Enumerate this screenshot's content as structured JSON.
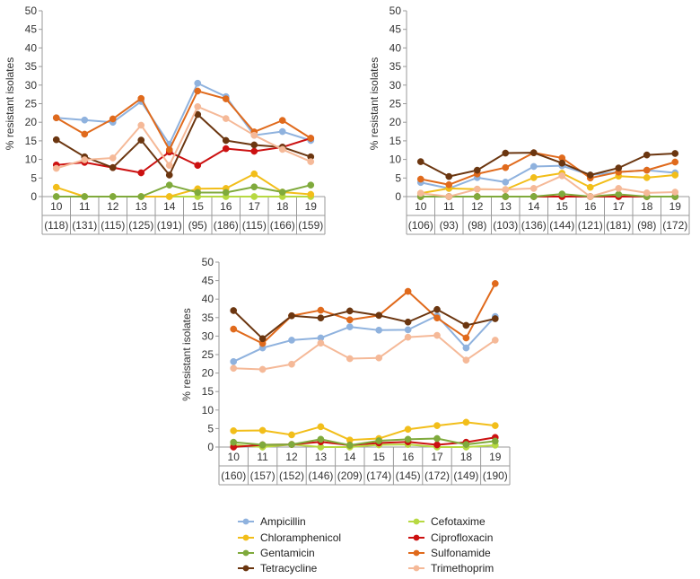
{
  "legend": [
    {
      "name": "Ampicillin",
      "color": "#8FB2DE"
    },
    {
      "name": "Cefotaxime",
      "color": "#B7D942"
    },
    {
      "name": "Chloramphenicol",
      "color": "#F2BE1A"
    },
    {
      "name": "Ciprofloxacin",
      "color": "#CC1111"
    },
    {
      "name": "Gentamicin",
      "color": "#7FAA3C"
    },
    {
      "name": "Sulfonamide",
      "color": "#E06A1C"
    },
    {
      "name": "Tetracycline",
      "color": "#6B3610"
    },
    {
      "name": "Trimethoprim",
      "color": "#F5B998"
    }
  ],
  "chart_data": [
    {
      "type": "line",
      "ylabel": "% resistant isolates",
      "ylim": [
        0,
        50
      ],
      "yticks": [
        "0",
        "5",
        "10",
        "15",
        "20",
        "25",
        "30",
        "35",
        "40",
        "45",
        "50"
      ],
      "categories": [
        "10",
        "11",
        "12",
        "13",
        "14",
        "15",
        "16",
        "17",
        "18",
        "19"
      ],
      "counts": [
        "(118)",
        "(131)",
        "(115)",
        "(125)",
        "(191)",
        "(95)",
        "(186)",
        "(115)",
        "(166)",
        "(159)"
      ],
      "series": [
        {
          "name": "Ampicillin",
          "values": [
            21.2,
            20.6,
            20.0,
            25.6,
            14.1,
            30.5,
            26.9,
            16.5,
            17.5,
            15.1
          ]
        },
        {
          "name": "Cefotaxime",
          "values": [
            0,
            0,
            0,
            0,
            0,
            0,
            0,
            0,
            0,
            0
          ]
        },
        {
          "name": "Chloramphenicol",
          "values": [
            2.5,
            0,
            0,
            0,
            0,
            2.1,
            2.2,
            6.1,
            1.2,
            0.6
          ]
        },
        {
          "name": "Ciprofloxacin",
          "values": [
            8.5,
            9.2,
            7.8,
            6.4,
            12.0,
            8.4,
            12.9,
            12.2,
            13.3,
            15.7
          ]
        },
        {
          "name": "Gentamicin",
          "values": [
            0,
            0,
            0,
            0,
            3.1,
            1.1,
            1.1,
            2.6,
            1.2,
            3.1
          ]
        },
        {
          "name": "Sulfonamide",
          "values": [
            21.2,
            16.8,
            20.9,
            26.4,
            12.6,
            28.4,
            26.3,
            17.4,
            20.5,
            15.7
          ]
        },
        {
          "name": "Tetracycline",
          "values": [
            15.3,
            10.7,
            7.8,
            15.2,
            5.8,
            22.1,
            15.1,
            13.9,
            13.3,
            10.7
          ]
        },
        {
          "name": "Trimethoprim",
          "values": [
            7.6,
            9.9,
            10.4,
            19.2,
            8.4,
            24.2,
            21.0,
            16.5,
            12.7,
            9.4
          ]
        }
      ]
    },
    {
      "type": "line",
      "ylabel": "% resistant isolates",
      "ylim": [
        0,
        50
      ],
      "yticks": [
        "0",
        "5",
        "10",
        "15",
        "20",
        "25",
        "30",
        "35",
        "40",
        "45",
        "50"
      ],
      "categories": [
        "10",
        "11",
        "12",
        "13",
        "14",
        "15",
        "16",
        "17",
        "18",
        "19"
      ],
      "counts": [
        "(106)",
        "(93)",
        "(98)",
        "(103)",
        "(136)",
        "(144)",
        "(121)",
        "(181)",
        "(98)",
        "(172)"
      ],
      "series": [
        {
          "name": "Ampicillin",
          "values": [
            3.8,
            2.2,
            5.1,
            3.9,
            8.1,
            8.3,
            5.8,
            6.6,
            7.1,
            6.4
          ]
        },
        {
          "name": "Cefotaxime",
          "values": [
            0,
            0,
            0,
            0,
            0,
            0,
            0,
            0,
            0,
            0
          ]
        },
        {
          "name": "Chloramphenicol",
          "values": [
            0.9,
            2.2,
            2.0,
            1.9,
            5.1,
            6.3,
            2.5,
            5.5,
            5.1,
            5.8
          ]
        },
        {
          "name": "Ciprofloxacin",
          "values": [
            0,
            0,
            0,
            0,
            0,
            0,
            0,
            0,
            0,
            0
          ]
        },
        {
          "name": "Gentamicin",
          "values": [
            0,
            0,
            0,
            0,
            0,
            0.7,
            0,
            0.6,
            0,
            0
          ]
        },
        {
          "name": "Sulfonamide",
          "values": [
            4.7,
            3.2,
            6.1,
            7.8,
            11.8,
            10.4,
            5.0,
            6.6,
            7.1,
            9.3
          ]
        },
        {
          "name": "Tetracycline",
          "values": [
            9.4,
            5.4,
            7.1,
            11.7,
            11.8,
            9.0,
            5.8,
            7.7,
            11.2,
            11.6
          ]
        },
        {
          "name": "Trimethoprim",
          "values": [
            0.9,
            0,
            2.0,
            1.9,
            2.2,
            5.6,
            0,
            2.2,
            1.0,
            1.2
          ]
        }
      ]
    },
    {
      "type": "line",
      "ylabel": "% resistant isolates",
      "ylim": [
        0,
        50
      ],
      "yticks": [
        "0",
        "5",
        "10",
        "15",
        "20",
        "25",
        "30",
        "35",
        "40",
        "45",
        "50"
      ],
      "categories": [
        "10",
        "11",
        "12",
        "13",
        "14",
        "15",
        "16",
        "17",
        "18",
        "19"
      ],
      "counts": [
        "(160)",
        "(157)",
        "(152)",
        "(146)",
        "(209)",
        "(174)",
        "(145)",
        "(172)",
        "(149)",
        "(190)"
      ],
      "series": [
        {
          "name": "Ampicillin",
          "values": [
            23.1,
            26.8,
            28.9,
            29.5,
            32.5,
            31.6,
            31.7,
            35.5,
            26.8,
            35.3
          ]
        },
        {
          "name": "Cefotaxime",
          "values": [
            0.6,
            0,
            0.7,
            0,
            0,
            0.6,
            0.7,
            0,
            0,
            0.5
          ]
        },
        {
          "name": "Chloramphenicol",
          "values": [
            4.4,
            4.5,
            3.3,
            5.5,
            1.9,
            2.3,
            4.8,
            5.8,
            6.7,
            5.8
          ]
        },
        {
          "name": "Ciprofloxacin",
          "values": [
            0,
            0.6,
            0.7,
            1.4,
            0.5,
            1.1,
            1.4,
            0.6,
            1.3,
            2.6
          ]
        },
        {
          "name": "Gentamicin",
          "values": [
            1.3,
            0.6,
            0.7,
            2.1,
            0.5,
            1.7,
            2.1,
            2.3,
            0.7,
            1.6
          ]
        },
        {
          "name": "Sulfonamide",
          "values": [
            31.9,
            28.0,
            35.5,
            37.0,
            34.4,
            35.6,
            42.1,
            34.9,
            29.5,
            44.2
          ]
        },
        {
          "name": "Tetracycline",
          "values": [
            36.9,
            29.3,
            35.5,
            34.9,
            36.8,
            35.6,
            33.8,
            37.2,
            32.9,
            34.7
          ]
        },
        {
          "name": "Trimethoprim",
          "values": [
            21.3,
            21.0,
            22.4,
            28.1,
            23.9,
            24.1,
            29.7,
            30.2,
            23.5,
            28.9
          ]
        }
      ]
    }
  ]
}
